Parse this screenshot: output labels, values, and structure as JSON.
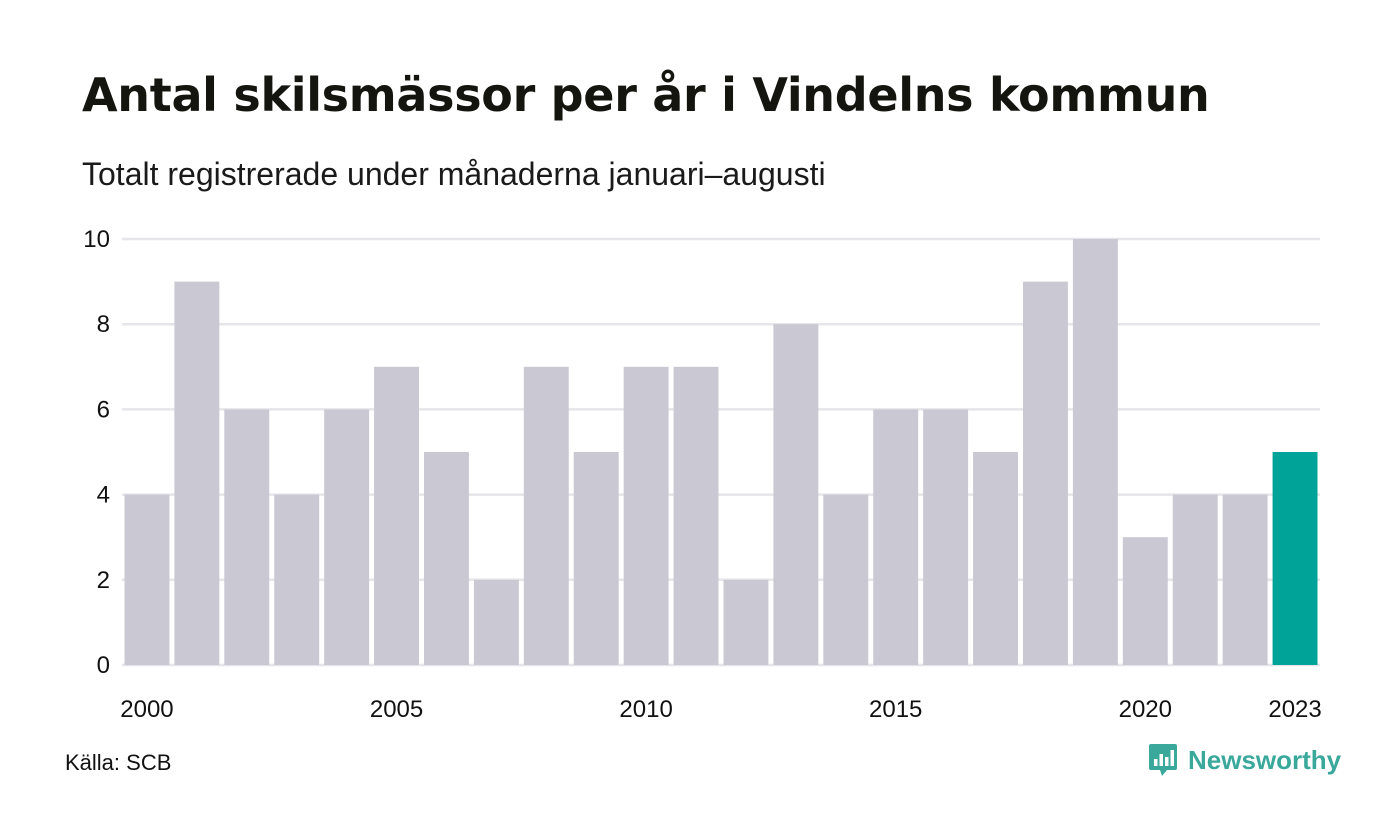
{
  "title": "Antal skilsmässor per år i Vindelns kommun",
  "subtitle": "Totalt registrerade under månaderna januari–augusti",
  "source": "Källa: SCB",
  "brand": {
    "name": "Newsworthy",
    "icon": "newsworthy-logo-icon",
    "color": "#3aa89b"
  },
  "colors": {
    "bar": "#c9c8d3",
    "highlight": "#00a398",
    "grid": "#e6e6ea",
    "tick_text": "#111111"
  },
  "chart_data": {
    "type": "bar",
    "title": "Antal skilsmässor per år i Vindelns kommun",
    "subtitle": "Totalt registrerade under månaderna januari–augusti",
    "xlabel": "",
    "ylabel": "",
    "categories": [
      "2000",
      "2001",
      "2002",
      "2003",
      "2004",
      "2005",
      "2006",
      "2007",
      "2008",
      "2009",
      "2010",
      "2011",
      "2012",
      "2013",
      "2014",
      "2015",
      "2016",
      "2017",
      "2018",
      "2019",
      "2020",
      "2021",
      "2022",
      "2023"
    ],
    "values": [
      4,
      9,
      6,
      4,
      6,
      7,
      5,
      2,
      7,
      5,
      7,
      7,
      2,
      8,
      4,
      6,
      6,
      5,
      9,
      10,
      3,
      4,
      4,
      5
    ],
    "highlight_category": "2023",
    "ylim": [
      0,
      10
    ],
    "yticks": [
      0,
      2,
      4,
      6,
      8,
      10
    ],
    "xtick_labels": [
      "2000",
      "2005",
      "2010",
      "2015",
      "2020",
      "2023"
    ],
    "grid": true,
    "legend": "none"
  }
}
